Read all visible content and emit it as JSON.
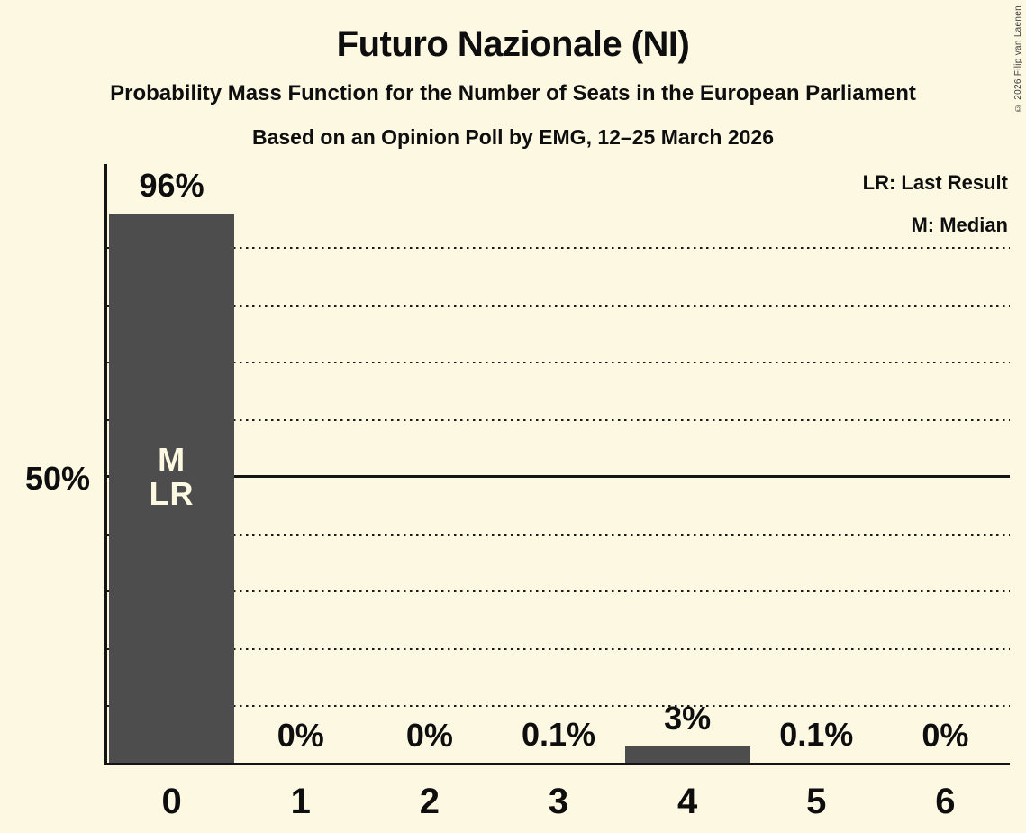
{
  "header": {
    "title": "Futuro Nazionale (NI)",
    "subtitle": "Probability Mass Function for the Number of Seats in the European Parliament",
    "subsubtitle": "Based on an Opinion Poll by EMG, 12–25 March 2026",
    "copyright": "© 2026 Filip van Laenen"
  },
  "legend": {
    "items": [
      "LR: Last Result",
      "M: Median"
    ]
  },
  "chart_data": {
    "type": "bar",
    "title": "Futuro Nazionale (NI)",
    "categories": [
      "0",
      "1",
      "2",
      "3",
      "4",
      "5",
      "6"
    ],
    "values": [
      96,
      0,
      0,
      0.1,
      3,
      0.1,
      0
    ],
    "bar_labels": [
      "96%",
      "0%",
      "0%",
      "0.1%",
      "3%",
      "0.1%",
      "0%"
    ],
    "xlabel": "",
    "ylabel": "",
    "ylim": [
      0,
      100
    ],
    "ytick_labels": [
      {
        "pct": 50,
        "label": "50%"
      }
    ],
    "gridlines_pct": [
      10,
      20,
      30,
      40,
      50,
      60,
      70,
      80,
      90
    ],
    "solid_gridline_pct": 50,
    "grid": true,
    "legend_position": "top-right",
    "annotations": [
      {
        "category": "0",
        "lines": [
          "M",
          "LR"
        ]
      }
    ],
    "colors": {
      "bar": "#4D4D4D",
      "background": "#FCF8E2",
      "text": "#0E0E0E",
      "grid": "#1A1A1A",
      "annotation_text": "#FCF8E2"
    }
  }
}
